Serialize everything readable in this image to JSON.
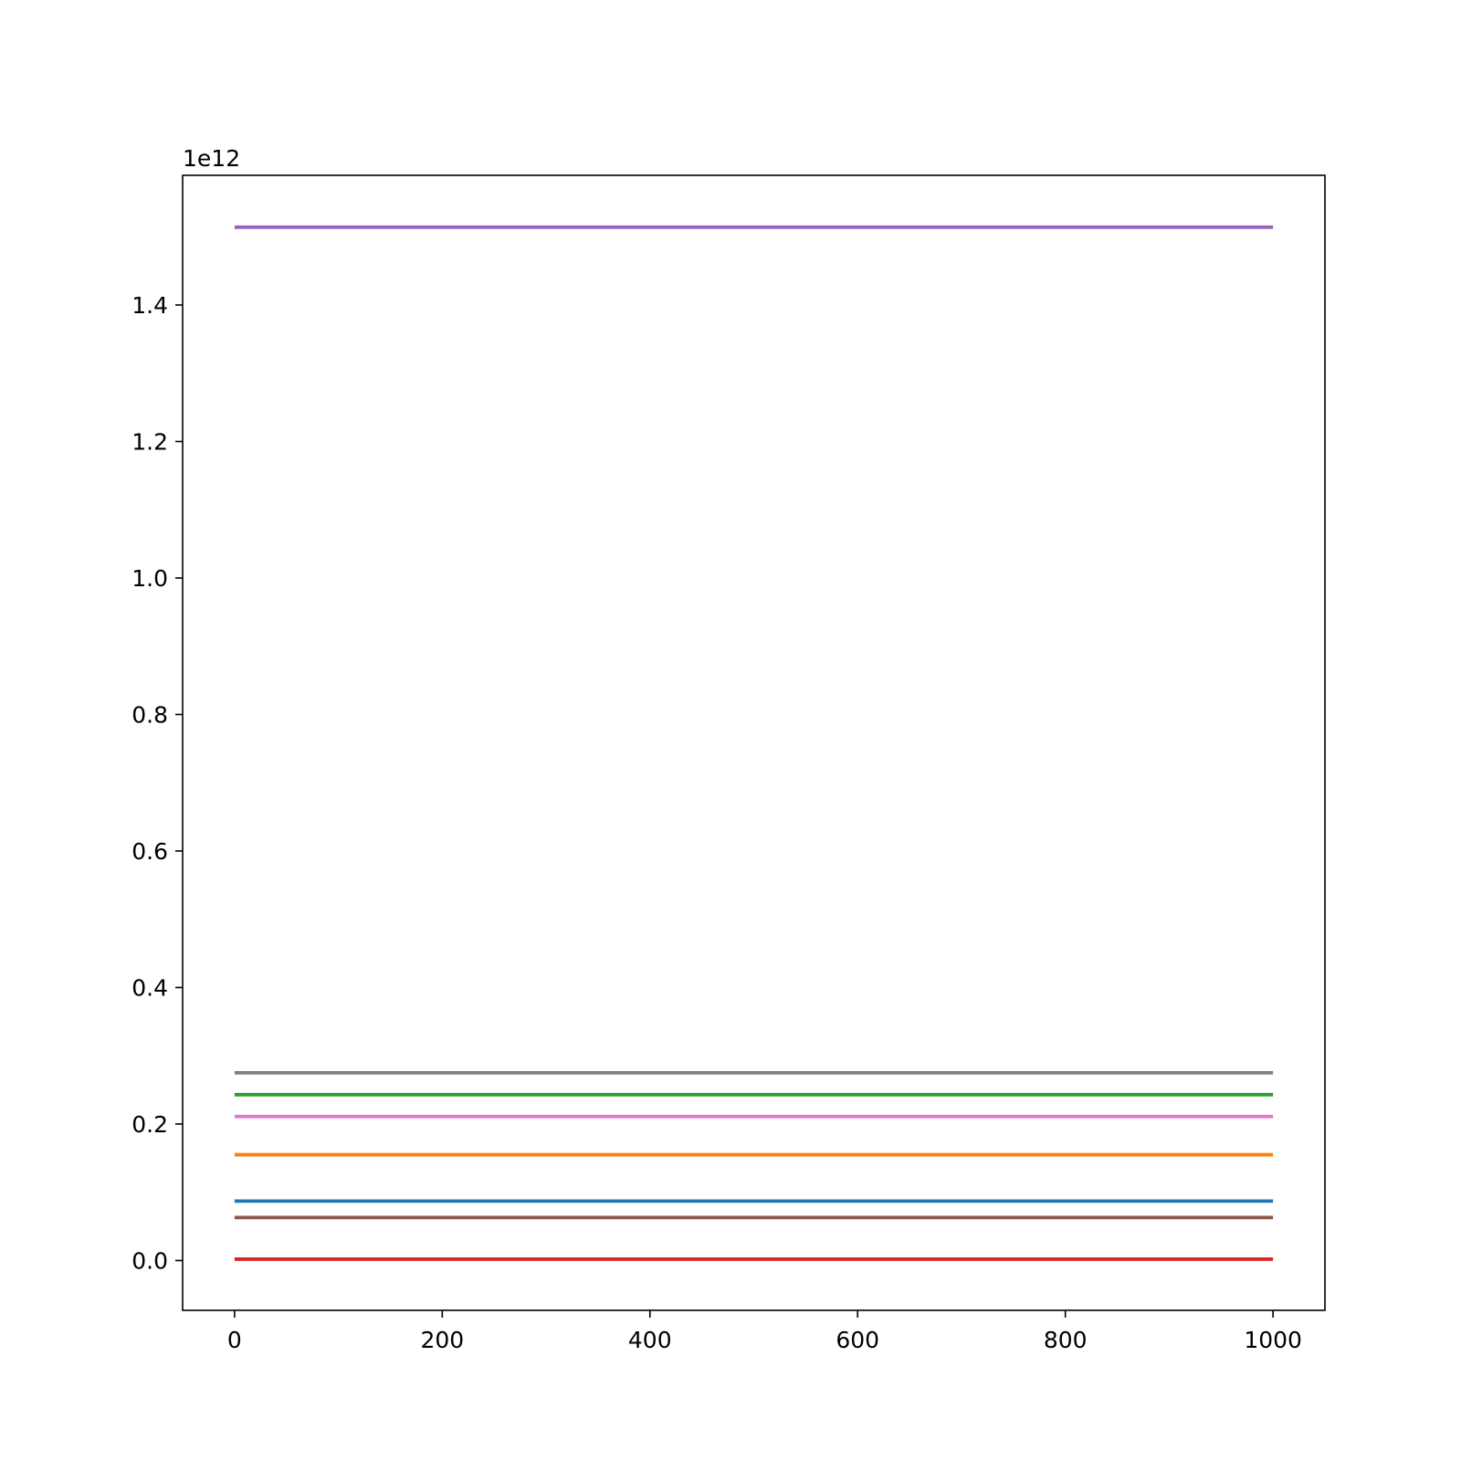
{
  "chart_data": {
    "type": "line",
    "title": "",
    "xlabel": "",
    "ylabel": "",
    "y_offset_label": "1e12",
    "y_multiplier": 1000000000000.0,
    "xlim": [
      -50,
      1050
    ],
    "ylim": [
      -0.073,
      1.59
    ],
    "x_ticks": [
      0,
      200,
      400,
      600,
      800,
      1000
    ],
    "x_tick_labels": [
      "0",
      "200",
      "400",
      "600",
      "800",
      "1000"
    ],
    "y_ticks": [
      0.0,
      0.2,
      0.4,
      0.6,
      0.8,
      1.0,
      1.2,
      1.4
    ],
    "y_tick_labels": [
      "0.0",
      "0.2",
      "0.4",
      "0.6",
      "0.8",
      "1.0",
      "1.2",
      "1.4"
    ],
    "grid": false,
    "legend": "none",
    "x": [
      0,
      1000
    ],
    "series": [
      {
        "color": "#1f77b4",
        "values": [
          0.087,
          0.087
        ]
      },
      {
        "color": "#ff7f0e",
        "values": [
          0.155,
          0.155
        ]
      },
      {
        "color": "#2ca02c",
        "values": [
          0.243,
          0.243
        ]
      },
      {
        "color": "#d62728",
        "values": [
          0.002,
          0.002
        ]
      },
      {
        "color": "#9467bd",
        "values": [
          1.514,
          1.514
        ]
      },
      {
        "color": "#8c564b",
        "values": [
          0.063,
          0.063
        ]
      },
      {
        "color": "#e377c2",
        "values": [
          0.211,
          0.211
        ]
      },
      {
        "color": "#7f7f7f",
        "values": [
          0.275,
          0.275
        ]
      }
    ]
  }
}
